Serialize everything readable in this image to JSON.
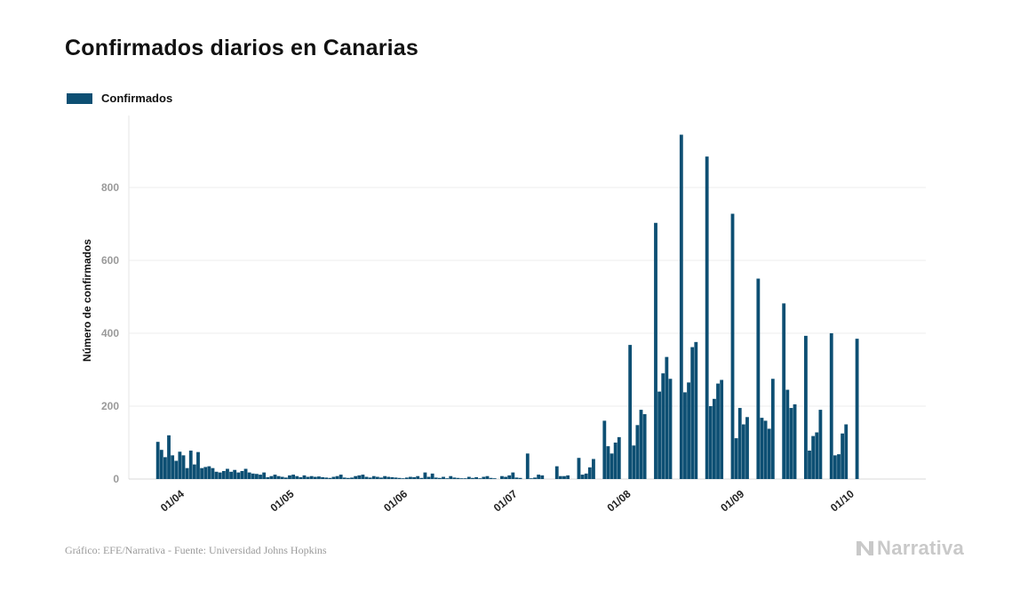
{
  "title": "Confirmados diarios en Canarias",
  "legend": {
    "label": "Confirmados",
    "color": "#0d4f73"
  },
  "source": "Gráfico: EFE/Narrativa - Fuente: Universidad Johns Hopkins",
  "brand": {
    "name": "Narrativa",
    "icon": "narrativa-logo-icon",
    "color": "#c9c9c9"
  },
  "chart_data": {
    "type": "bar",
    "title": "Confirmados diarios en Canarias",
    "xlabel": "",
    "ylabel": "Número de confirmados",
    "ylim": [
      0,
      980
    ],
    "yticks": [
      0,
      200,
      400,
      600,
      800
    ],
    "grid": true,
    "legend_position": "top-left",
    "start_index_offset": -2,
    "date_ticks": [
      {
        "label": "01/04",
        "index": 0
      },
      {
        "label": "01/05",
        "index": 30
      },
      {
        "label": "01/06",
        "index": 61
      },
      {
        "label": "01/07",
        "index": 91
      },
      {
        "label": "01/08",
        "index": 122
      },
      {
        "label": "01/09",
        "index": 153
      },
      {
        "label": "01/10",
        "index": 183
      }
    ],
    "series": [
      {
        "name": "Confirmados",
        "color": "#0d4f73",
        "values": [
          102,
          80,
          60,
          120,
          65,
          50,
          75,
          65,
          30,
          78,
          40,
          74,
          30,
          33,
          35,
          30,
          20,
          18,
          22,
          28,
          20,
          25,
          18,
          22,
          28,
          18,
          15,
          14,
          12,
          18,
          5,
          8,
          12,
          8,
          6,
          4,
          10,
          12,
          8,
          5,
          10,
          6,
          8,
          6,
          7,
          5,
          4,
          3,
          6,
          8,
          12,
          4,
          3,
          4,
          8,
          10,
          12,
          6,
          4,
          8,
          6,
          4,
          8,
          6,
          5,
          4,
          3,
          2,
          4,
          6,
          5,
          8,
          3,
          18,
          6,
          15,
          4,
          3,
          6,
          2,
          8,
          4,
          3,
          2,
          2,
          6,
          3,
          5,
          2,
          6,
          8,
          3,
          2,
          0,
          8,
          6,
          10,
          18,
          4,
          3,
          0,
          70,
          2,
          4,
          12,
          10,
          0,
          0,
          0,
          35,
          8,
          8,
          10,
          0,
          0,
          58,
          12,
          15,
          32,
          55,
          0,
          0,
          160,
          90,
          70,
          100,
          115,
          0,
          0,
          368,
          92,
          148,
          190,
          178,
          0,
          0,
          703,
          240,
          290,
          335,
          275,
          0,
          0,
          945,
          238,
          265,
          362,
          376,
          0,
          0,
          885,
          200,
          220,
          262,
          272,
          0,
          0,
          728,
          112,
          195,
          150,
          170,
          0,
          0,
          550,
          168,
          160,
          138,
          275,
          0,
          0,
          482,
          245,
          195,
          205,
          0,
          0,
          393,
          78,
          118,
          128,
          190,
          0,
          0,
          400,
          65,
          68,
          125,
          150,
          0,
          0,
          385
        ]
      }
    ]
  }
}
